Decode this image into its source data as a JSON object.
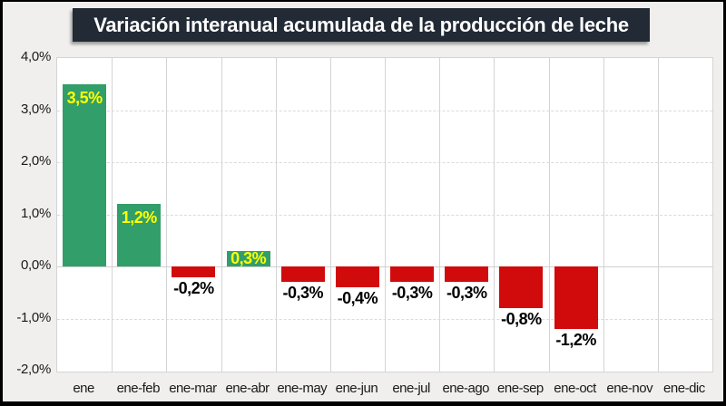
{
  "title": "Variación interanual acumulada de la producción de leche",
  "colors": {
    "page_background": "#F0EFED",
    "frame_border": "#000000",
    "title_background": "#222A35",
    "title_text": "#FFFFFF",
    "plot_background": "#FFFFFF",
    "plot_border": "#D4D4D4",
    "gridline_vertical": "#D4D4D4",
    "gridline_horizontal": "#DBDBDB",
    "zero_line": "#CFCFCF",
    "positive_bar": "#329E69",
    "negative_bar": "#D10B0B",
    "positive_value_label": "#FFFF00",
    "negative_value_label": "#000000",
    "axis_text": "#1A1A1A"
  },
  "chart_data": {
    "type": "bar",
    "title": "Variación interanual acumulada de la producción de leche",
    "xlabel": "",
    "ylabel": "",
    "categories": [
      "ene",
      "ene-feb",
      "ene-mar",
      "ene-abr",
      "ene-may",
      "ene-jun",
      "ene-jul",
      "ene-ago",
      "ene-sep",
      "ene-oct",
      "ene-nov",
      "ene-dic"
    ],
    "values": [
      3.5,
      1.2,
      -0.2,
      0.3,
      -0.3,
      -0.4,
      -0.3,
      -0.3,
      -0.8,
      -1.2,
      null,
      null
    ],
    "value_labels": [
      "3,5%",
      "1,2%",
      "-0,2%",
      "0,3%",
      "-0,3%",
      "-0,4%",
      "-0,3%",
      "-0,3%",
      "-0,8%",
      "-1,2%",
      "",
      ""
    ],
    "ylim": [
      -2,
      4
    ],
    "ytick_values": [
      4,
      3,
      2,
      1,
      0,
      -1,
      -2
    ],
    "ytick_labels": [
      "4,0%",
      "3,0%",
      "2,0%",
      "1,0%",
      "0,0%",
      "-1,0%",
      "-2,0%"
    ],
    "grid": "horizontal dashed, vertical solid category separators",
    "legend": false,
    "label_position": {
      "positive": "inside-top",
      "negative": "below-bar"
    }
  }
}
